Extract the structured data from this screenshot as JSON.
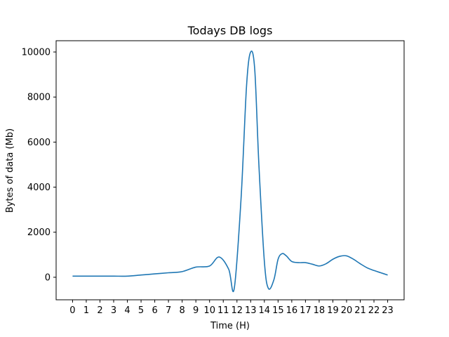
{
  "chart_data": {
    "type": "line",
    "title": "Todays DB logs",
    "xlabel": "Time (H)",
    "ylabel": "Bytes of data (Mb)",
    "xlim": [
      -1.2,
      24.2
    ],
    "ylim": [
      -1000,
      10500
    ],
    "x_ticks": [
      0,
      1,
      2,
      3,
      4,
      5,
      6,
      7,
      8,
      9,
      10,
      11,
      12,
      13,
      14,
      15,
      16,
      17,
      18,
      19,
      20,
      21,
      22,
      23
    ],
    "x_tick_labels": [
      "0",
      "1",
      "2",
      "3",
      "4",
      "5",
      "6",
      "7",
      "8",
      "9",
      "10",
      "11",
      "12",
      "13",
      "14",
      "15",
      "16",
      "17",
      "18",
      "19",
      "20",
      "21",
      "22",
      "23"
    ],
    "y_ticks": [
      0,
      2000,
      4000,
      6000,
      8000,
      10000
    ],
    "y_tick_labels": [
      "0",
      "2000",
      "4000",
      "6000",
      "8000",
      "10000"
    ],
    "grid": false,
    "series": [
      {
        "color": "#1f77b4",
        "x": [
          0,
          1,
          2,
          3,
          4,
          5,
          6,
          7,
          8,
          9,
          10,
          10.7,
          11.4,
          11.8,
          12.3,
          12.7,
          13,
          13.3,
          13.6,
          14,
          14.3,
          14.7,
          15,
          15.3,
          15.6,
          16,
          16.5,
          17,
          17.5,
          18,
          18.5,
          19,
          19.5,
          20,
          20.5,
          21,
          21.5,
          22,
          22.5,
          23
        ],
        "y": [
          50,
          50,
          50,
          50,
          50,
          100,
          150,
          200,
          250,
          450,
          500,
          900,
          350,
          -500,
          3500,
          8500,
          10000,
          9200,
          5000,
          700,
          -500,
          -100,
          800,
          1050,
          950,
          700,
          650,
          650,
          580,
          500,
          600,
          800,
          930,
          950,
          800,
          600,
          420,
          300,
          200,
          100
        ]
      }
    ]
  }
}
